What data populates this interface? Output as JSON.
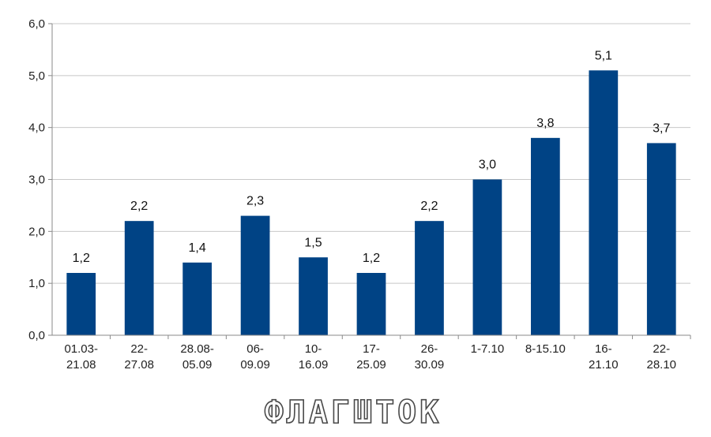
{
  "chart_data": {
    "type": "bar",
    "title": "",
    "xlabel": "",
    "ylabel": "",
    "ylim": [
      0,
      6
    ],
    "yticks": [
      "0,0",
      "1,0",
      "2,0",
      "3,0",
      "4,0",
      "5,0",
      "6,0"
    ],
    "grid": true,
    "legend": "none",
    "bar_color": "#004385",
    "categories": [
      [
        "01.03-",
        "21.08"
      ],
      [
        "22-",
        "27.08"
      ],
      [
        "28.08-",
        "05.09"
      ],
      [
        "06-",
        "09.09"
      ],
      [
        "10-",
        "16.09"
      ],
      [
        "17-",
        "25.09"
      ],
      [
        "26-",
        "30.09"
      ],
      [
        "1-7.10"
      ],
      [
        "8-15.10"
      ],
      [
        "16-",
        "21.10"
      ],
      [
        "22-",
        "28.10"
      ]
    ],
    "values": [
      1.2,
      2.2,
      1.4,
      2.3,
      1.5,
      1.2,
      2.2,
      3.0,
      3.8,
      5.1,
      3.7
    ],
    "value_labels": [
      "1,2",
      "2,2",
      "1,4",
      "2,3",
      "1,5",
      "1,2",
      "2,2",
      "3,0",
      "3,8",
      "5,1",
      "3,7"
    ]
  },
  "watermark": "ФЛАГШТОК"
}
